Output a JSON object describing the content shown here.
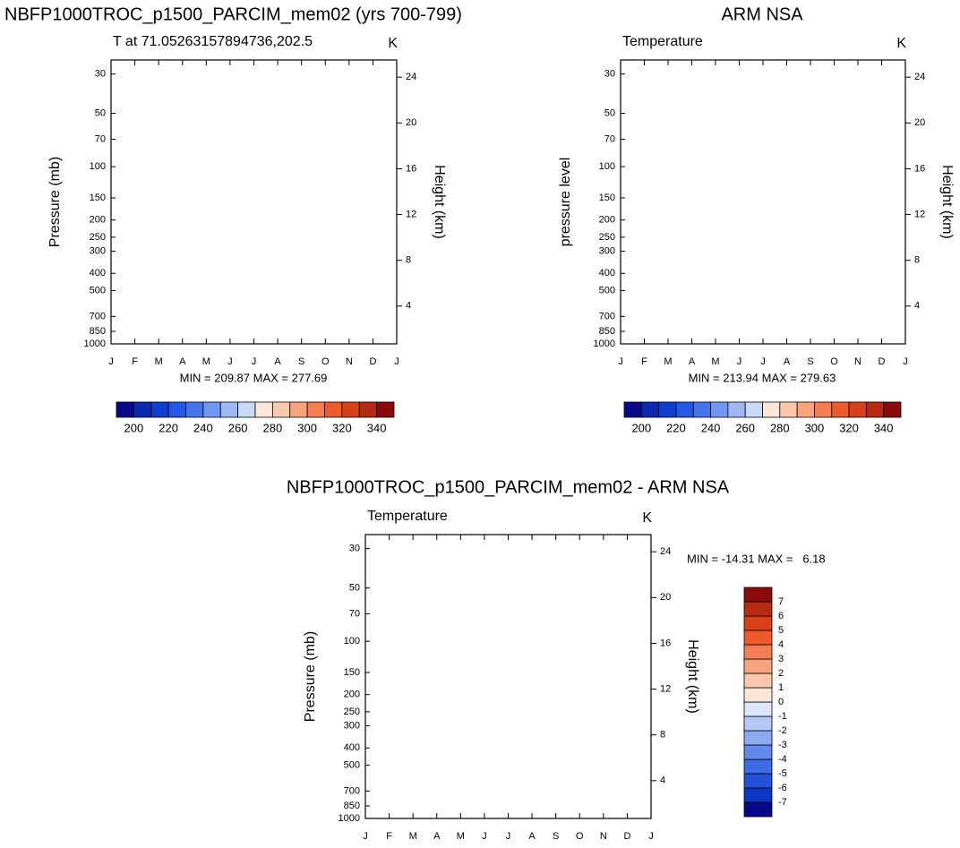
{
  "chart_data": [
    {
      "type": "contour",
      "title": "NBFP1000TROC_p1500_PARCIM_mem02 (yrs 700-799)",
      "subtitle": "T at 71.05263157894736,202.5",
      "units": "K",
      "ylabel": "Pressure (mb)",
      "y2label": "Height (km)",
      "categories": [
        "J",
        "F",
        "M",
        "A",
        "M",
        "J",
        "J",
        "A",
        "S",
        "O",
        "N",
        "D",
        "J"
      ],
      "ylim": [
        1000,
        25
      ],
      "ylog": true,
      "yticks": [
        30,
        50,
        70,
        100,
        150,
        200,
        250,
        300,
        400,
        500,
        700,
        850,
        1000
      ],
      "y2lim": [
        0.7,
        25.5
      ],
      "y2ticks": [
        4,
        8,
        12,
        16,
        20,
        24
      ],
      "stats": "MIN = 209.87 MAX = 277.69",
      "colorbar": {
        "orientation": "horizontal",
        "lim": [
          190,
          350
        ],
        "labels": [
          200,
          220,
          240,
          260,
          280,
          300,
          320,
          340
        ],
        "colors": [
          "#08088a",
          "#0a2ab0",
          "#0c3ecf",
          "#2458e6",
          "#4474ec",
          "#7098f0",
          "#9db8f4",
          "#c8daf8",
          "#fde6d8",
          "#fbc8ac",
          "#f8a47c",
          "#f47e52",
          "#ef5a2c",
          "#d9401a",
          "#b52a10",
          "#8a0a0a"
        ]
      }
    },
    {
      "type": "contour",
      "title": "ARM NSA",
      "subtitle": "Temperature",
      "units": "K",
      "ylabel": "pressure level",
      "y2label": "Height (km)",
      "categories": [
        "J",
        "F",
        "M",
        "A",
        "M",
        "J",
        "J",
        "A",
        "S",
        "O",
        "N",
        "D",
        "J"
      ],
      "ylim": [
        1000,
        25
      ],
      "ylog": true,
      "yticks": [
        30,
        50,
        70,
        100,
        150,
        200,
        250,
        300,
        400,
        500,
        700,
        850,
        1000
      ],
      "y2lim": [
        0.7,
        25.5
      ],
      "y2ticks": [
        4,
        8,
        12,
        16,
        20,
        24
      ],
      "stats": "MIN = 213.94 MAX = 279.63",
      "colorbar": {
        "orientation": "horizontal",
        "lim": [
          190,
          350
        ],
        "labels": [
          200,
          220,
          240,
          260,
          280,
          300,
          320,
          340
        ],
        "colors": [
          "#08088a",
          "#0a2ab0",
          "#0c3ecf",
          "#2458e6",
          "#4474ec",
          "#7098f0",
          "#9db8f4",
          "#c8daf8",
          "#fde6d8",
          "#fbc8ac",
          "#f8a47c",
          "#f47e52",
          "#ef5a2c",
          "#d9401a",
          "#b52a10",
          "#8a0a0a"
        ]
      }
    },
    {
      "type": "contour",
      "title": "NBFP1000TROC_p1500_PARCIM_mem02 - ARM NSA",
      "subtitle": "Temperature",
      "units": "K",
      "ylabel": "Pressure (mb)",
      "y2label": "Height (km)",
      "categories": [
        "J",
        "F",
        "M",
        "A",
        "M",
        "J",
        "J",
        "A",
        "S",
        "O",
        "N",
        "D",
        "J"
      ],
      "ylim": [
        1000,
        25
      ],
      "ylog": true,
      "yticks": [
        30,
        50,
        70,
        100,
        150,
        200,
        250,
        300,
        400,
        500,
        700,
        850,
        1000
      ],
      "y2lim": [
        0.7,
        25.5
      ],
      "y2ticks": [
        4,
        8,
        12,
        16,
        20,
        24
      ],
      "stats": "MIN = -14.31 MAX =   6.18",
      "colorbar": {
        "orientation": "vertical",
        "lim": [
          -8,
          8
        ],
        "labels": [
          7,
          6,
          5,
          4,
          3,
          2,
          1,
          0,
          -1,
          -2,
          -3,
          -4,
          -5,
          -6,
          -7
        ],
        "colors": [
          "#08088a",
          "#0c36c4",
          "#2451dc",
          "#3e6be6",
          "#628aec",
          "#8aaaf1",
          "#b3c8f5",
          "#dbe6fb",
          "#fde6d8",
          "#fbc8ac",
          "#f8a47c",
          "#f47e52",
          "#ef5a2c",
          "#d9401a",
          "#b52a10",
          "#8b0a0a"
        ]
      }
    }
  ]
}
